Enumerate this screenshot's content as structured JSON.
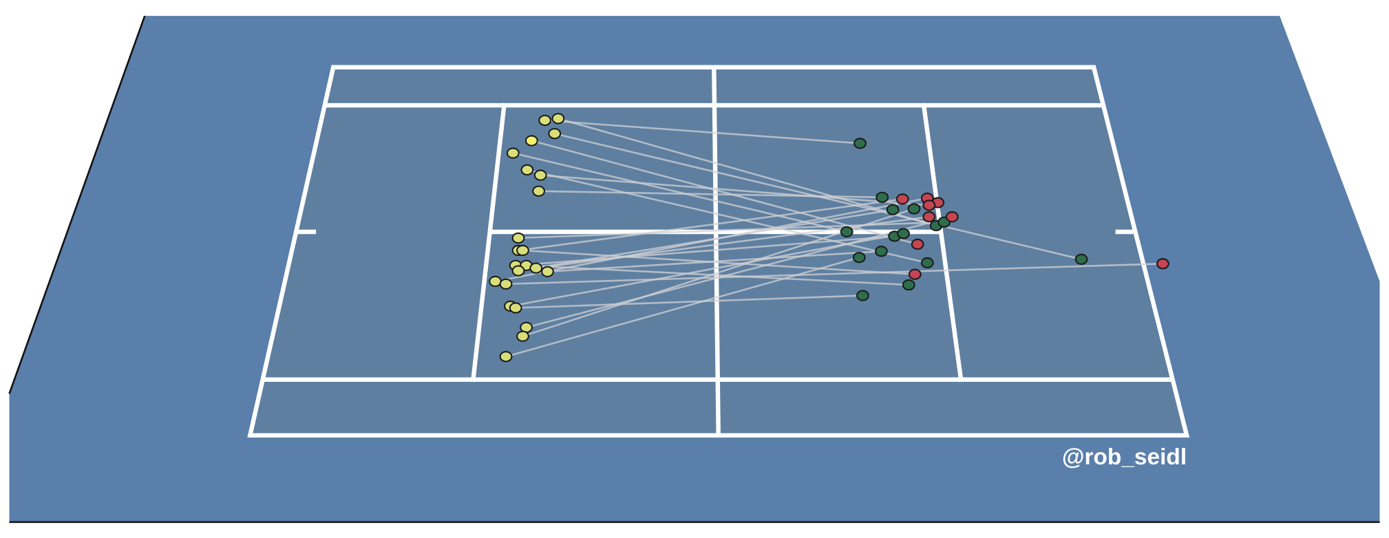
{
  "credit": "@rob_seidl"
}
